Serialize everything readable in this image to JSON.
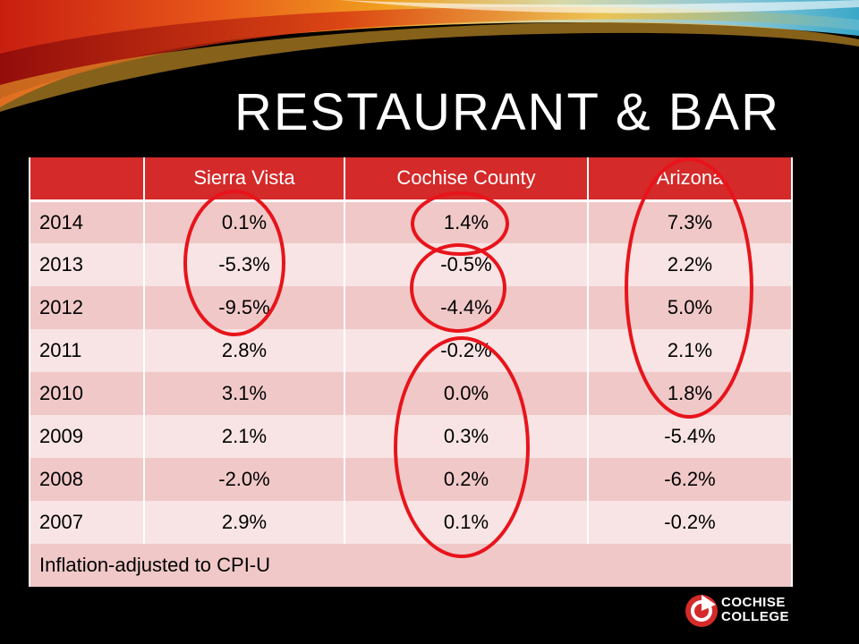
{
  "slide": {
    "title": "RESTAURANT & BAR"
  },
  "table": {
    "headers": [
      "",
      "Sierra Vista",
      "Cochise County",
      "Arizona"
    ],
    "rows": [
      {
        "year": "2014",
        "sierra_vista": "0.1%",
        "cochise_county": "1.4%",
        "arizona": "7.3%"
      },
      {
        "year": "2013",
        "sierra_vista": "-5.3%",
        "cochise_county": "-0.5%",
        "arizona": "2.2%"
      },
      {
        "year": "2012",
        "sierra_vista": "-9.5%",
        "cochise_county": "-4.4%",
        "arizona": "5.0%"
      },
      {
        "year": "2011",
        "sierra_vista": "2.8%",
        "cochise_county": "-0.2%",
        "arizona": "2.1%"
      },
      {
        "year": "2010",
        "sierra_vista": "3.1%",
        "cochise_county": "0.0%",
        "arizona": "1.8%"
      },
      {
        "year": "2009",
        "sierra_vista": "2.1%",
        "cochise_county": "0.3%",
        "arizona": "-5.4%"
      },
      {
        "year": "2008",
        "sierra_vista": "-2.0%",
        "cochise_county": "0.2%",
        "arizona": "-6.2%"
      },
      {
        "year": "2007",
        "sierra_vista": "2.9%",
        "cochise_county": "0.1%",
        "arizona": "-0.2%"
      }
    ],
    "footnote": "Inflation-adjusted to CPI-U"
  },
  "logo": {
    "line1": "COCHISE",
    "line2": "COLLEGE",
    "icon": "cochise-college-logo-icon"
  },
  "colors": {
    "header_bg": "#d42a2a",
    "row_dark": "#f0c8c8",
    "row_light": "#f8e4e4",
    "highlight_circle": "#e8141b",
    "background": "#000000"
  }
}
